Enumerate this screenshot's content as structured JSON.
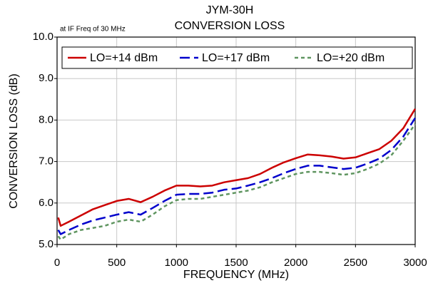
{
  "chart_data": {
    "type": "line",
    "title": "JYM-30H",
    "subtitle": "CONVERSION LOSS",
    "annotation": "at IF Freq of 30 MHz",
    "x_label": "FREQUENCY (MHz)",
    "y_label": "CONVERSION LOSS (dB)",
    "x": [
      10,
      30,
      100,
      200,
      300,
      400,
      500,
      600,
      700,
      800,
      900,
      1000,
      1100,
      1200,
      1300,
      1400,
      1500,
      1600,
      1700,
      1800,
      1900,
      2000,
      2100,
      2200,
      2300,
      2400,
      2500,
      2600,
      2700,
      2800,
      2900,
      3000
    ],
    "series": [
      {
        "name": "LO=+14 dBm",
        "color": "#cc0000",
        "dash": "solid",
        "values": [
          5.65,
          5.45,
          5.55,
          5.7,
          5.85,
          5.95,
          6.05,
          6.1,
          6.02,
          6.15,
          6.3,
          6.42,
          6.42,
          6.4,
          6.42,
          6.5,
          6.55,
          6.6,
          6.7,
          6.85,
          6.98,
          7.08,
          7.17,
          7.15,
          7.12,
          7.07,
          7.1,
          7.2,
          7.3,
          7.5,
          7.8,
          8.27
        ]
      },
      {
        "name": "LO=+17 dBm",
        "color": "#0000cc",
        "dash": "long",
        "values": [
          5.35,
          5.25,
          5.35,
          5.48,
          5.58,
          5.65,
          5.72,
          5.78,
          5.72,
          5.88,
          6.05,
          6.2,
          6.22,
          6.22,
          6.25,
          6.32,
          6.35,
          6.42,
          6.5,
          6.6,
          6.72,
          6.82,
          6.9,
          6.9,
          6.86,
          6.82,
          6.85,
          6.95,
          7.07,
          7.28,
          7.6,
          8.05
        ]
      },
      {
        "name": "LO=+20 dBm",
        "color": "#5f9560",
        "dash": "short",
        "values": [
          5.2,
          5.12,
          5.25,
          5.35,
          5.4,
          5.45,
          5.55,
          5.6,
          5.55,
          5.72,
          5.92,
          6.07,
          6.1,
          6.1,
          6.15,
          6.2,
          6.25,
          6.3,
          6.38,
          6.5,
          6.6,
          6.7,
          6.75,
          6.75,
          6.72,
          6.68,
          6.72,
          6.82,
          6.95,
          7.15,
          7.5,
          7.9
        ]
      }
    ],
    "xlim": [
      0,
      3000
    ],
    "xticks": [
      0,
      500,
      1000,
      1500,
      2000,
      2500,
      3000
    ],
    "ylim": [
      5,
      10
    ],
    "yticks": [
      {
        "value": 5,
        "label": "5.0"
      },
      {
        "value": 6,
        "label": "6.0"
      },
      {
        "value": 7,
        "label": "7.0"
      },
      {
        "value": 8,
        "label": "8.0"
      },
      {
        "value": 9,
        "label": "9.0"
      },
      {
        "value": 10,
        "label": "10.0"
      }
    ],
    "grid": true,
    "legend": "top"
  }
}
